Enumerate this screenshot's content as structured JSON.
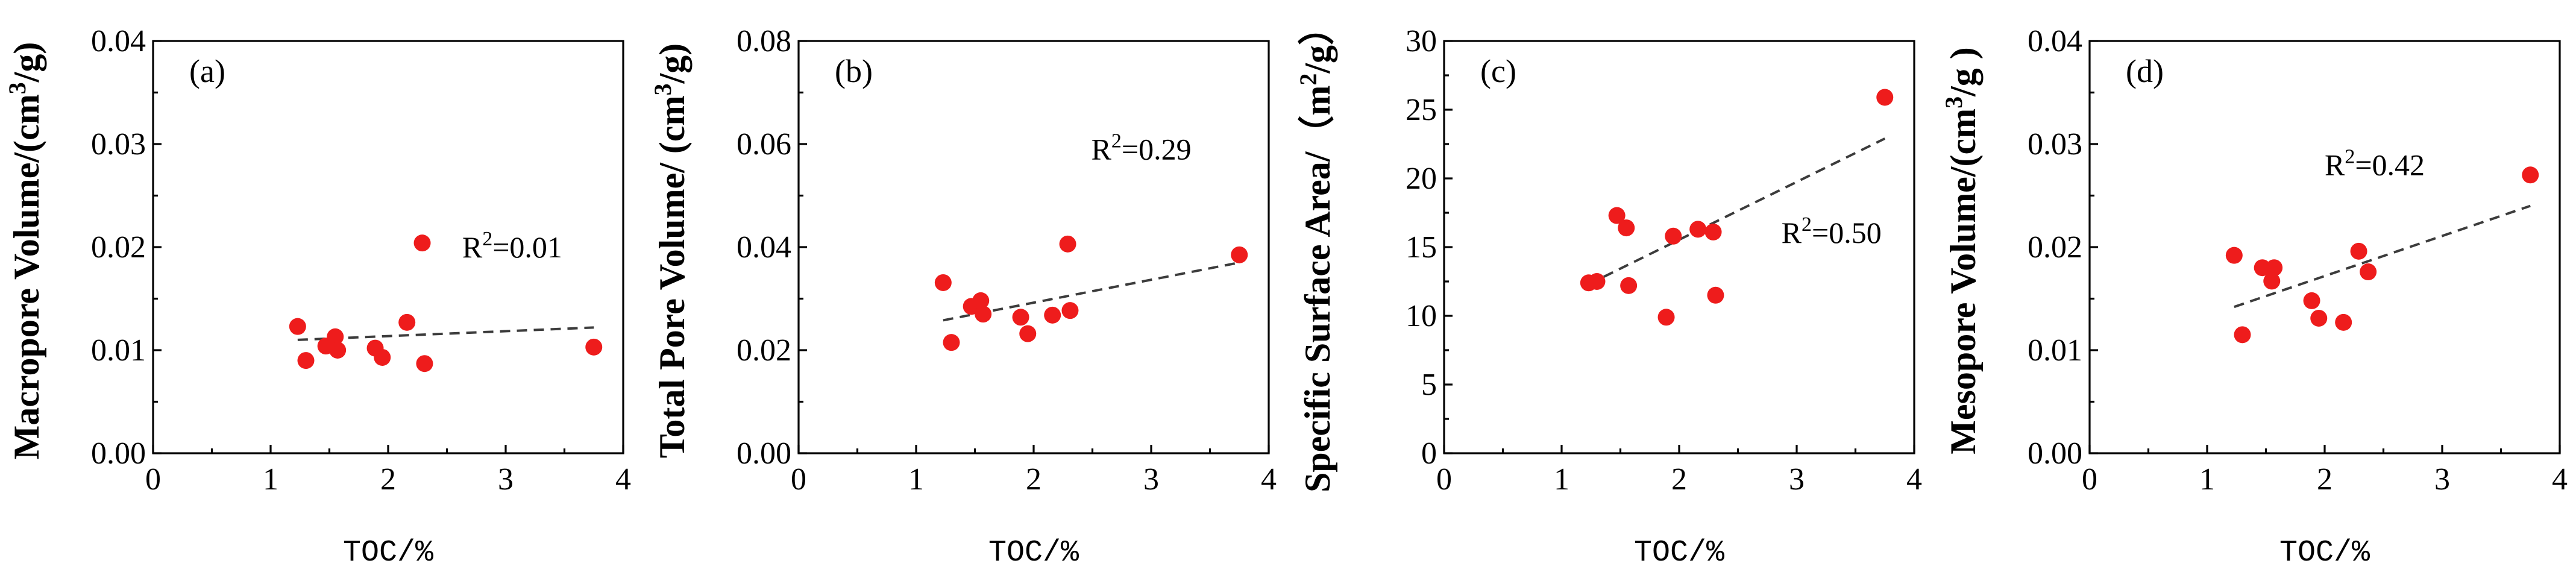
{
  "chart_data": [
    {
      "panel_label": "(a)",
      "type": "scatter",
      "xlabel": "TOC/%",
      "ylabel": {
        "pre": "Macropore Volume/(cm",
        "sup": "3",
        "post": "/g)"
      },
      "xlim": [
        0,
        4
      ],
      "ylim": [
        0,
        0.04
      ],
      "x_ticks": [
        0,
        1,
        2,
        3,
        4
      ],
      "x_tick_labels": [
        "0",
        "1",
        "2",
        "3",
        "4"
      ],
      "y_ticks": [
        0,
        0.01,
        0.02,
        0.03,
        0.04
      ],
      "y_tick_labels": [
        "0.00",
        "0.01",
        "0.02",
        "0.03",
        "0.04"
      ],
      "points": [
        [
          1.23,
          0.0123
        ],
        [
          1.3,
          0.009
        ],
        [
          1.47,
          0.0104
        ],
        [
          1.55,
          0.0113
        ],
        [
          1.57,
          0.01
        ],
        [
          1.89,
          0.0102
        ],
        [
          1.95,
          0.0093
        ],
        [
          2.16,
          0.0127
        ],
        [
          2.29,
          0.0204
        ],
        [
          2.31,
          0.0087
        ],
        [
          3.75,
          0.0103
        ]
      ],
      "trendline": {
        "x": [
          1.23,
          3.75
        ],
        "y": [
          0.011,
          0.0122
        ]
      },
      "annotation": {
        "prefix": "R",
        "sup": "2",
        "value": "=0.01",
        "anchor_x": 2.63,
        "anchor_y": 0.019
      }
    },
    {
      "panel_label": "(b)",
      "type": "scatter",
      "xlabel": "TOC/%",
      "ylabel": {
        "pre": "Total Pore Volume/ (cm",
        "sup": "3",
        "post": "/g)"
      },
      "xlim": [
        0,
        4
      ],
      "ylim": [
        0,
        0.08
      ],
      "x_ticks": [
        0,
        1,
        2,
        3,
        4
      ],
      "x_tick_labels": [
        "0",
        "1",
        "2",
        "3",
        "4"
      ],
      "y_ticks": [
        0,
        0.02,
        0.04,
        0.06,
        0.08
      ],
      "y_tick_labels": [
        "0.00",
        "0.02",
        "0.04",
        "0.06",
        "0.08"
      ],
      "points": [
        [
          1.23,
          0.0331
        ],
        [
          1.3,
          0.0215
        ],
        [
          1.47,
          0.0285
        ],
        [
          1.55,
          0.0296
        ],
        [
          1.57,
          0.027
        ],
        [
          1.89,
          0.0264
        ],
        [
          1.95,
          0.0232
        ],
        [
          2.16,
          0.0268
        ],
        [
          2.29,
          0.0406
        ],
        [
          2.31,
          0.0277
        ],
        [
          3.75,
          0.0385
        ]
      ],
      "trendline": {
        "x": [
          1.23,
          3.75
        ],
        "y": [
          0.0258,
          0.037
        ]
      },
      "annotation": {
        "prefix": "R",
        "sup": "2",
        "value": "=0.29",
        "anchor_x": 2.49,
        "anchor_y": 0.057
      }
    },
    {
      "panel_label": "(c)",
      "type": "scatter",
      "xlabel": "TOC/%",
      "ylabel": {
        "pre": "Specific Surface Area/（m",
        "sup": "2",
        "post": "/g）"
      },
      "xlim": [
        0,
        4
      ],
      "ylim": [
        0,
        30
      ],
      "x_ticks": [
        0,
        1,
        2,
        3,
        4
      ],
      "x_tick_labels": [
        "0",
        "1",
        "2",
        "3",
        "4"
      ],
      "y_ticks": [
        0,
        5,
        10,
        15,
        20,
        25,
        30
      ],
      "y_tick_labels": [
        "0",
        "5",
        "10",
        "15",
        "20",
        "25",
        "30"
      ],
      "points": [
        [
          1.23,
          12.4
        ],
        [
          1.3,
          12.5
        ],
        [
          1.47,
          17.3
        ],
        [
          1.55,
          16.4
        ],
        [
          1.57,
          12.2
        ],
        [
          1.89,
          9.9
        ],
        [
          1.95,
          15.8
        ],
        [
          2.16,
          16.3
        ],
        [
          2.29,
          16.1
        ],
        [
          2.31,
          11.5
        ],
        [
          3.75,
          25.9
        ]
      ],
      "trendline": {
        "x": [
          1.23,
          3.75
        ],
        "y": [
          12.3,
          22.9
        ]
      },
      "annotation": {
        "prefix": "R",
        "sup": "2",
        "value": "=0.50",
        "anchor_x": 2.87,
        "anchor_y": 15.3
      }
    },
    {
      "panel_label": "(d)",
      "type": "scatter",
      "xlabel": "TOC/%",
      "ylabel": {
        "pre": "Mesopore Volume/(cm",
        "sup": "3",
        "post": "/g )"
      },
      "xlim": [
        0,
        4
      ],
      "ylim": [
        0,
        0.04
      ],
      "x_ticks": [
        0,
        1,
        2,
        3,
        4
      ],
      "x_tick_labels": [
        "0",
        "1",
        "2",
        "3",
        "4"
      ],
      "y_ticks": [
        0,
        0.01,
        0.02,
        0.03,
        0.04
      ],
      "y_tick_labels": [
        "0.00",
        "0.01",
        "0.02",
        "0.03",
        "0.04"
      ],
      "points": [
        [
          1.23,
          0.0192
        ],
        [
          1.3,
          0.0115
        ],
        [
          1.47,
          0.018
        ],
        [
          1.55,
          0.0167
        ],
        [
          1.57,
          0.018
        ],
        [
          1.89,
          0.0148
        ],
        [
          1.95,
          0.0131
        ],
        [
          2.16,
          0.0127
        ],
        [
          2.29,
          0.0196
        ],
        [
          2.37,
          0.0176
        ],
        [
          3.75,
          0.027
        ]
      ],
      "trendline": {
        "x": [
          1.23,
          3.75
        ],
        "y": [
          0.0142,
          0.024
        ]
      },
      "annotation": {
        "prefix": "R",
        "sup": "2",
        "value": "=0.42",
        "anchor_x": 2.0,
        "anchor_y": 0.027
      }
    }
  ]
}
